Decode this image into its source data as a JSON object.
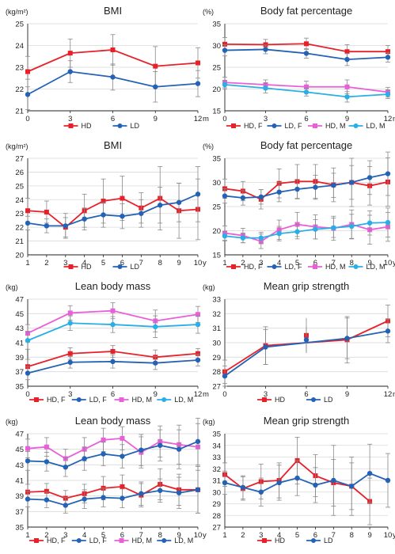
{
  "panels": [
    {
      "title": "BMI",
      "unit": "(kg/m²)",
      "xunit": "m",
      "type": "line",
      "x": [
        0,
        3,
        6,
        9,
        12
      ],
      "xticks": [
        0,
        3,
        6,
        9,
        12
      ],
      "xlim": [
        0,
        12
      ],
      "ylim": [
        21,
        25
      ],
      "yticks": [
        21,
        22,
        23,
        24,
        25
      ],
      "series": [
        {
          "name": "HD",
          "color": "#e8202a",
          "marker": "square",
          "values": [
            22.8,
            23.65,
            23.8,
            23.05,
            23.2
          ],
          "err": [
            0.7,
            0.65,
            0.7,
            0.9,
            0.7
          ]
        },
        {
          "name": "LD",
          "color": "#2462b5",
          "marker": "circle",
          "values": [
            21.75,
            22.8,
            22.55,
            22.1,
            22.25
          ],
          "err": [
            0.7,
            0.5,
            0.6,
            0.7,
            0.6
          ]
        }
      ]
    },
    {
      "title": "Body fat percentage",
      "unit": "(%)",
      "xunit": "m",
      "type": "line",
      "x": [
        0,
        3,
        6,
        9,
        12
      ],
      "xticks": [
        0,
        3,
        6,
        9,
        12
      ],
      "xlim": [
        0,
        12
      ],
      "ylim": [
        15,
        35
      ],
      "yticks": [
        15,
        20,
        25,
        30,
        35
      ],
      "series": [
        {
          "name": "HD, F",
          "color": "#e8202a",
          "marker": "square",
          "values": [
            30.3,
            30.2,
            30.4,
            28.6,
            28.6
          ],
          "err": [
            1.5,
            1.2,
            1.3,
            1.6,
            1.4
          ]
        },
        {
          "name": "LD, F",
          "color": "#2462b5",
          "marker": "circle",
          "values": [
            28.9,
            29.1,
            28.2,
            26.8,
            27.3
          ],
          "err": [
            1.3,
            1.0,
            1.1,
            1.4,
            1.1
          ]
        },
        {
          "name": "HD, M",
          "color": "#e85fd8",
          "marker": "square",
          "values": [
            21.5,
            21.0,
            20.5,
            20.5,
            19.3
          ],
          "err": [
            1.2,
            1.1,
            1.3,
            1.6,
            1.1
          ]
        },
        {
          "name": "LD, M",
          "color": "#29aee6",
          "marker": "circle",
          "values": [
            21.0,
            20.2,
            19.3,
            18.2,
            18.8
          ],
          "err": [
            1.0,
            1.1,
            0.9,
            1.2,
            1.0
          ]
        }
      ]
    },
    {
      "title": "BMI",
      "unit": "(kg/m²)",
      "xunit": "y",
      "type": "line",
      "x": [
        1,
        2,
        3,
        4,
        5,
        6,
        7,
        8,
        9,
        10
      ],
      "xticks": [
        1,
        2,
        3,
        4,
        5,
        6,
        7,
        8,
        9,
        10
      ],
      "xlim": [
        1,
        10
      ],
      "ylim": [
        20,
        27
      ],
      "yticks": [
        20,
        21,
        22,
        23,
        24,
        25,
        26,
        27
      ],
      "series": [
        {
          "name": "HD",
          "color": "#e8202a",
          "marker": "square",
          "values": [
            23.2,
            23.1,
            22.0,
            23.2,
            23.9,
            24.1,
            23.4,
            24.1,
            23.2,
            23.3
          ],
          "err": [
            0.9,
            0.8,
            0.7,
            1.2,
            1.6,
            1.6,
            1.1,
            2.3,
            2.0,
            2.2
          ]
        },
        {
          "name": "LD",
          "color": "#2462b5",
          "marker": "circle",
          "values": [
            22.3,
            22.1,
            22.1,
            22.6,
            22.9,
            22.8,
            23.0,
            23.6,
            23.8,
            24.4
          ],
          "err": [
            0.5,
            0.5,
            0.9,
            0.8,
            0.9,
            0.9,
            1.0,
            1.3,
            1.4,
            2.0
          ]
        }
      ]
    },
    {
      "title": "Body fat percentage",
      "unit": "(%)",
      "xunit": "y",
      "type": "line",
      "x": [
        1,
        2,
        3,
        4,
        5,
        6,
        7,
        8,
        9,
        10
      ],
      "xticks": [
        1,
        2,
        3,
        4,
        5,
        6,
        7,
        8,
        9,
        10
      ],
      "xlim": [
        1,
        10
      ],
      "ylim": [
        15,
        35
      ],
      "yticks": [
        15,
        20,
        25,
        30,
        35
      ],
      "series": [
        {
          "name": "HD, F",
          "color": "#e8202a",
          "marker": "square",
          "values": [
            28.7,
            28.2,
            26.5,
            29.8,
            30.2,
            30.2,
            29.5,
            30.0,
            29.3,
            30.1
          ],
          "err": [
            2.0,
            2.0,
            2.0,
            3.0,
            3.5,
            3.5,
            3.5,
            5.0,
            4.0,
            5.0
          ]
        },
        {
          "name": "LD, F",
          "color": "#2462b5",
          "marker": "circle",
          "values": [
            27.2,
            26.8,
            27.0,
            28.0,
            28.6,
            29.0,
            29.4,
            30.0,
            31.0,
            31.8
          ],
          "err": [
            1.5,
            1.5,
            1.5,
            2.0,
            2.0,
            2.5,
            2.5,
            3.5,
            3.5,
            4.5
          ]
        },
        {
          "name": "HD, M",
          "color": "#e85fd8",
          "marker": "square",
          "values": [
            19.5,
            19.0,
            17.8,
            20.2,
            21.3,
            20.8,
            20.5,
            21.3,
            20.2,
            20.8
          ],
          "err": [
            1.5,
            1.5,
            1.5,
            2.0,
            2.5,
            2.5,
            2.5,
            3.0,
            3.0,
            3.0
          ]
        },
        {
          "name": "LD, M",
          "color": "#29aee6",
          "marker": "circle",
          "values": [
            18.9,
            18.5,
            18.5,
            19.4,
            19.8,
            20.3,
            20.6,
            20.9,
            21.6,
            21.7
          ],
          "err": [
            1.0,
            1.0,
            1.2,
            1.5,
            1.5,
            2.0,
            2.0,
            2.5,
            2.5,
            3.0
          ]
        }
      ]
    },
    {
      "title": "Lean body mass",
      "unit": "(kg)",
      "xunit": "m",
      "type": "line",
      "x": [
        0,
        3,
        6,
        9,
        12
      ],
      "xticks": [
        0,
        3,
        6,
        9,
        12
      ],
      "xlim": [
        0,
        12
      ],
      "ylim": [
        35,
        47
      ],
      "yticks": [
        35,
        37,
        39,
        41,
        43,
        45,
        47
      ],
      "series": [
        {
          "name": "HD, F",
          "color": "#e8202a",
          "marker": "square",
          "values": [
            37.7,
            39.5,
            39.8,
            39.0,
            39.5
          ],
          "err": [
            1.0,
            0.8,
            0.8,
            1.0,
            0.7
          ]
        },
        {
          "name": "LD, F",
          "color": "#2462b5",
          "marker": "circle",
          "values": [
            36.8,
            38.3,
            38.4,
            38.2,
            38.6
          ],
          "err": [
            0.9,
            0.8,
            0.9,
            0.9,
            0.8
          ]
        },
        {
          "name": "HD, M",
          "color": "#e85fd8",
          "marker": "square",
          "values": [
            42.3,
            45.1,
            45.4,
            44.0,
            44.9
          ],
          "err": [
            1.2,
            1.0,
            1.1,
            1.5,
            1.1
          ]
        },
        {
          "name": "LD, M",
          "color": "#29aee6",
          "marker": "circle",
          "values": [
            41.3,
            43.7,
            43.5,
            43.2,
            43.5
          ],
          "err": [
            1.2,
            1.0,
            1.1,
            1.5,
            1.2
          ]
        }
      ]
    },
    {
      "title": "Mean grip strength",
      "unit": "(kg)",
      "xunit": "m",
      "type": "line",
      "x": [
        0,
        3,
        9,
        12
      ],
      "xticks": [
        0,
        3,
        6,
        9,
        12
      ],
      "xlim": [
        0,
        12
      ],
      "ylim": [
        27,
        33
      ],
      "yticks": [
        27,
        28,
        29,
        30,
        31,
        32,
        33
      ],
      "series": [
        {
          "name": "HD",
          "color": "#e8202a",
          "marker": "square",
          "values": [
            28.0,
            29.8,
            30.2,
            31.5
          ],
          "err": [
            0.8,
            1.3,
            1.6,
            1.1
          ]
        },
        {
          "name": "LD",
          "color": "#2462b5",
          "marker": "circle",
          "values": [
            27.7,
            29.7,
            30.3,
            30.8
          ],
          "err": [
            0.7,
            1.2,
            1.4,
            0.8
          ]
        }
      ],
      "extra_points": [
        {
          "series": 0,
          "x": 6,
          "value": 30.5,
          "err": 1.2
        },
        {
          "series": 1,
          "x": 6,
          "value": 30.2,
          "err": 0.9
        }
      ]
    },
    {
      "title": "Lean body mass",
      "unit": "(kg)",
      "xunit": "y",
      "type": "line",
      "x": [
        1,
        2,
        3,
        4,
        5,
        6,
        7,
        8,
        9,
        10
      ],
      "xticks": [
        1,
        2,
        3,
        4,
        5,
        6,
        7,
        8,
        9,
        10
      ],
      "xlim": [
        1,
        10
      ],
      "ylim": [
        35,
        47
      ],
      "yticks": [
        35,
        37,
        39,
        41,
        43,
        45,
        47
      ],
      "series": [
        {
          "name": "HD, F",
          "color": "#e8202a",
          "marker": "square",
          "values": [
            39.5,
            39.6,
            38.7,
            39.3,
            40.0,
            40.2,
            39.1,
            40.5,
            39.8,
            39.8
          ],
          "err": [
            1.0,
            1.0,
            1.0,
            1.2,
            1.5,
            1.5,
            1.5,
            2.0,
            2.0,
            3.0
          ]
        },
        {
          "name": "LD, F",
          "color": "#2462b5",
          "marker": "circle",
          "values": [
            38.6,
            38.5,
            37.8,
            38.6,
            38.8,
            38.7,
            39.3,
            39.7,
            39.4,
            39.8
          ],
          "err": [
            1.0,
            1.0,
            1.0,
            1.2,
            1.2,
            1.2,
            1.5,
            1.5,
            2.0,
            3.0
          ]
        },
        {
          "name": "HD, M",
          "color": "#e85fd8",
          "marker": "square",
          "values": [
            45.1,
            45.3,
            43.8,
            45.0,
            46.2,
            46.4,
            44.6,
            46.0,
            45.6,
            45.3
          ],
          "err": [
            1.2,
            1.2,
            1.2,
            1.5,
            1.5,
            1.5,
            2.0,
            2.0,
            2.5,
            3.0
          ]
        },
        {
          "name": "LD, M",
          "color": "#2462b5",
          "marker": "circle",
          "values": [
            43.5,
            43.4,
            42.7,
            43.8,
            44.4,
            44.1,
            44.9,
            45.5,
            45.0,
            46.0
          ],
          "err": [
            1.2,
            1.2,
            1.2,
            1.5,
            1.5,
            1.5,
            2.0,
            2.0,
            2.5,
            3.0
          ]
        }
      ]
    },
    {
      "title": "Mean grip strength",
      "unit": "(kg)",
      "xunit": "y",
      "type": "line",
      "x": [
        1,
        2,
        3,
        4,
        5,
        6,
        7,
        8,
        9,
        10
      ],
      "xticks": [
        1,
        2,
        3,
        4,
        5,
        6,
        7,
        8,
        9,
        10
      ],
      "xlim": [
        1,
        10
      ],
      "ylim": [
        27,
        35
      ],
      "yticks": [
        27,
        28,
        29,
        30,
        31,
        32,
        33,
        34,
        35
      ],
      "series": [
        {
          "name": "HD",
          "color": "#e8202a",
          "marker": "square",
          "values": [
            31.5,
            30.3,
            30.9,
            31.0,
            32.7,
            31.4,
            30.8,
            30.5,
            29.2,
            null
          ],
          "err": [
            1.0,
            1.0,
            1.5,
            1.5,
            2.0,
            1.8,
            2.0,
            2.5,
            2.0,
            0
          ]
        },
        {
          "name": "LD",
          "color": "#2462b5",
          "marker": "circle",
          "values": [
            30.8,
            30.4,
            30.0,
            30.8,
            31.2,
            30.6,
            31.0,
            30.5,
            31.6,
            31.0
          ],
          "err": [
            1.0,
            1.0,
            1.2,
            1.5,
            1.5,
            1.5,
            3.0,
            2.0,
            2.5,
            2.3
          ]
        }
      ]
    }
  ]
}
